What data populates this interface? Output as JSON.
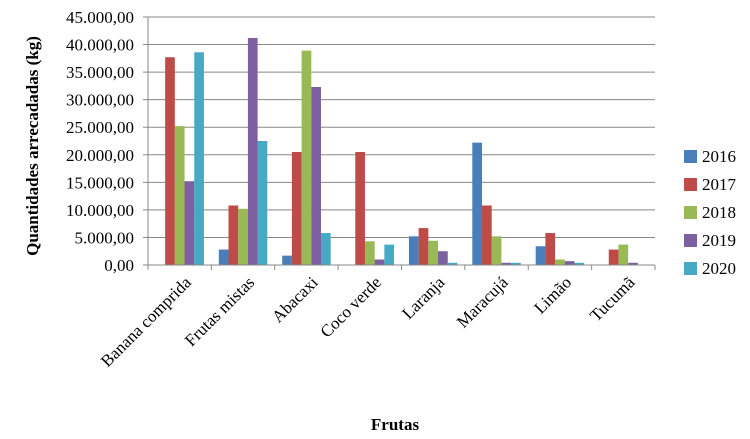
{
  "chart_data": {
    "type": "bar",
    "xlabel": "Frutas",
    "ylabel": "Quantidades arrecadadas (kg)",
    "ylim": [
      0,
      45000
    ],
    "yticks": [
      "0,00",
      "5.000,00",
      "10.000,00",
      "15.000,00",
      "20.000,00",
      "25.000,00",
      "30.000,00",
      "35.000,00",
      "40.000,00",
      "45.000,00"
    ],
    "grid": true,
    "legend_position": "right",
    "categories": [
      "Banana comprida",
      "Frutas mistas",
      "Abacaxi",
      "Coco verde",
      "Laranja",
      "Maracujá",
      "Limão",
      "Tucumã"
    ],
    "series": [
      {
        "name": "2016",
        "color": "#4a7ebb",
        "values": [
          0,
          2800,
          1700,
          0,
          5200,
          22200,
          3400,
          0
        ]
      },
      {
        "name": "2017",
        "color": "#be4b48",
        "values": [
          37700,
          10800,
          20500,
          20500,
          6700,
          10800,
          5800,
          2800
        ]
      },
      {
        "name": "2018",
        "color": "#98b954",
        "values": [
          25200,
          10200,
          38900,
          4300,
          4400,
          5200,
          1000,
          3700
        ]
      },
      {
        "name": "2019",
        "color": "#7d60a0",
        "values": [
          15200,
          41200,
          32300,
          1000,
          2500,
          400,
          700,
          400
        ]
      },
      {
        "name": "2020",
        "color": "#46aac5",
        "values": [
          38600,
          22500,
          5800,
          3700,
          400,
          400,
          400,
          0
        ]
      }
    ]
  }
}
